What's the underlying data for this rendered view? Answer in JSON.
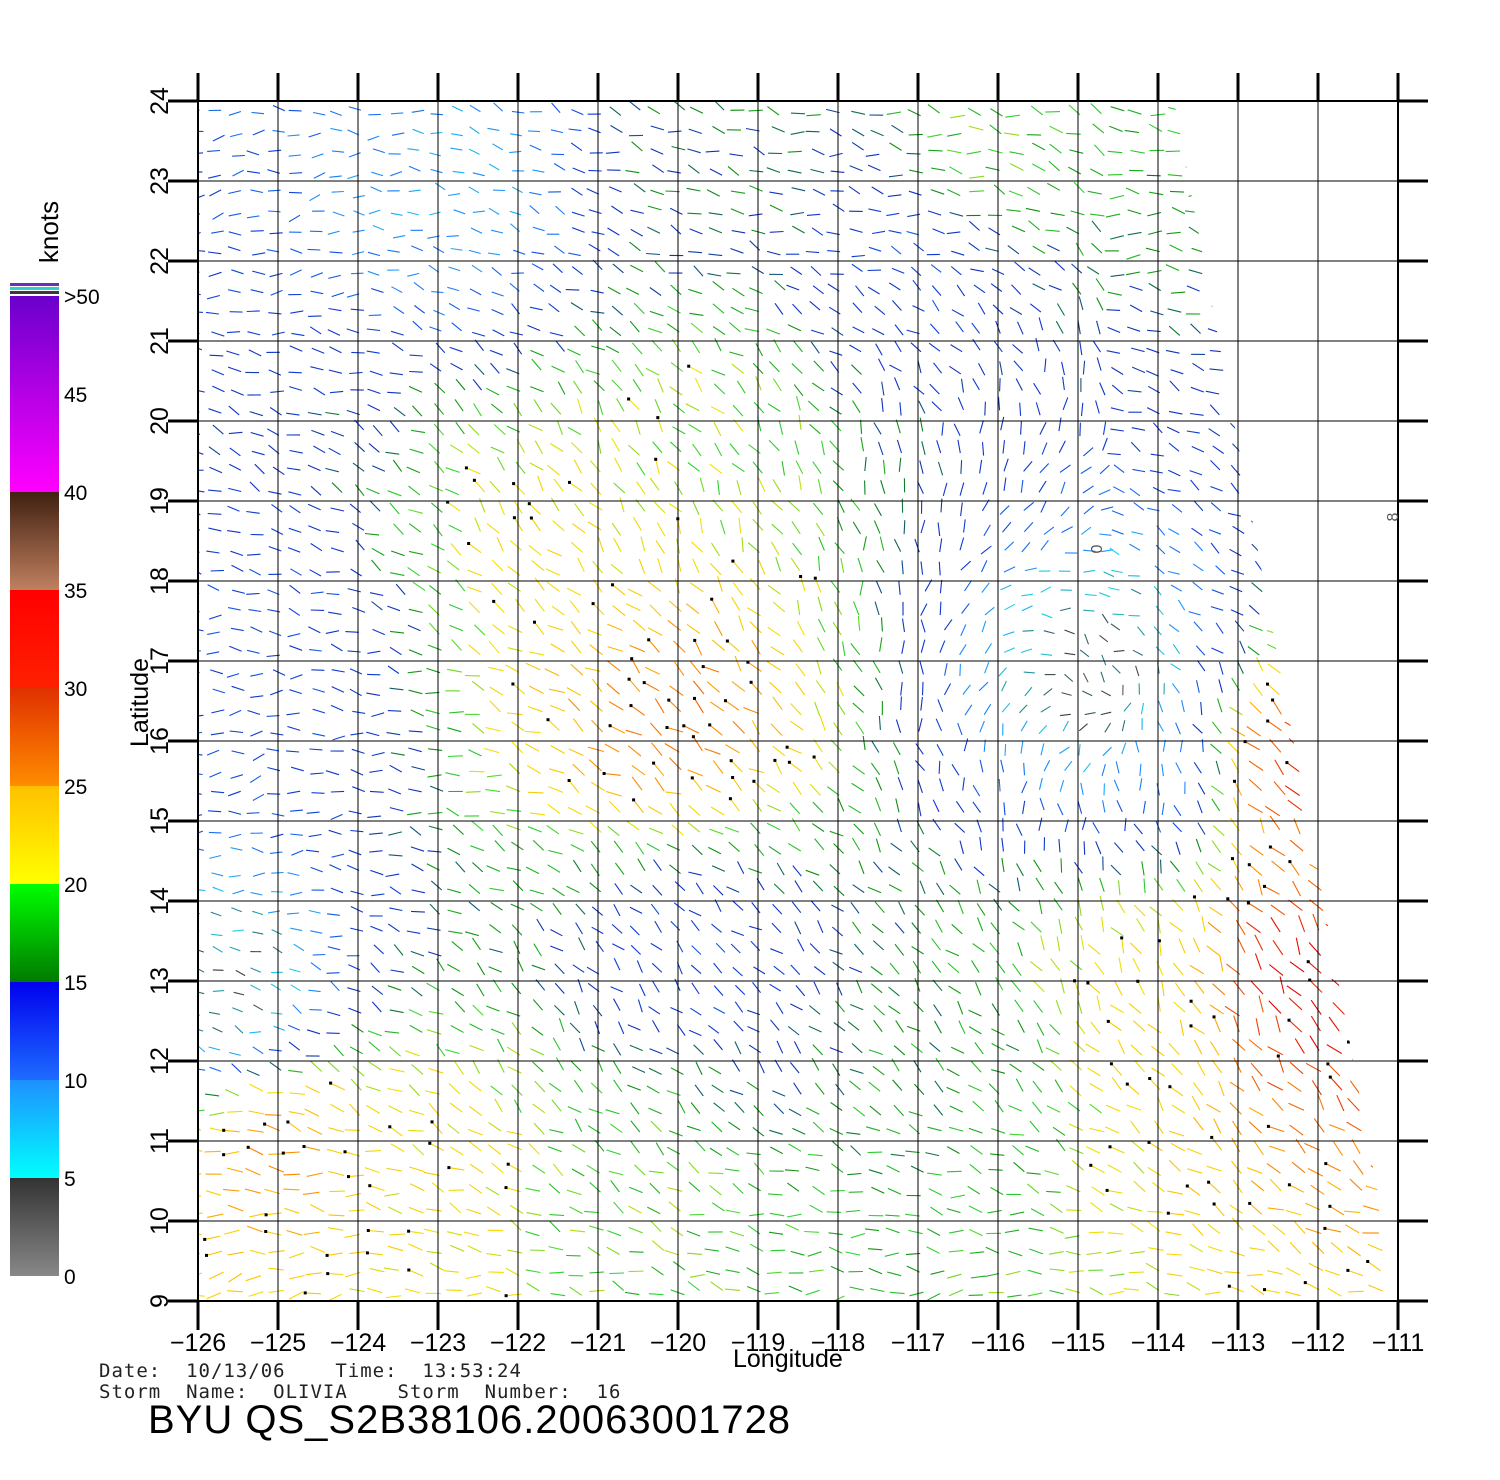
{
  "map": {
    "x_axis": {
      "label": "Longitude",
      "ticks": [
        "-126",
        "-125",
        "-124",
        "-123",
        "-122",
        "-121",
        "-120",
        "-119",
        "-118",
        "-117",
        "-116",
        "-115",
        "-114",
        "-113",
        "-112",
        "-111"
      ],
      "range": [
        -126,
        -111
      ]
    },
    "y_axis": {
      "label": "Latitude",
      "ticks": [
        "9",
        "10",
        "11",
        "12",
        "13",
        "14",
        "15",
        "16",
        "17",
        "18",
        "19",
        "20",
        "21",
        "22",
        "23",
        "24"
      ],
      "range": [
        9,
        24
      ]
    },
    "grid": true,
    "swath_polygon_deg": [
      [
        -126,
        24
      ],
      [
        -113.8,
        24
      ],
      [
        -111,
        9
      ],
      [
        -126,
        9
      ]
    ],
    "labels_in_plot": [
      {
        "text": "0",
        "lon": -114.7,
        "lat": 18.4
      },
      {
        "text": "8",
        "lon": -111.0,
        "lat": 18.8
      }
    ]
  },
  "colorbar": {
    "unit": "knots",
    "tick_labels": [
      "0",
      "5",
      "10",
      "15",
      "20",
      "25",
      "30",
      "35",
      "40",
      "45",
      ">50"
    ],
    "bands": [
      {
        "from": 0,
        "to": 5,
        "colors": [
          "#888888",
          "#333333"
        ]
      },
      {
        "from": 5,
        "to": 10,
        "colors": [
          "#00ffff",
          "#1e90ff"
        ]
      },
      {
        "from": 10,
        "to": 15,
        "colors": [
          "#1e6cff",
          "#0000ee"
        ]
      },
      {
        "from": 15,
        "to": 20,
        "colors": [
          "#007a00",
          "#00ff00"
        ]
      },
      {
        "from": 20,
        "to": 25,
        "colors": [
          "#ffff00",
          "#ffc000"
        ]
      },
      {
        "from": 25,
        "to": 30,
        "colors": [
          "#ff8c00",
          "#e03000"
        ]
      },
      {
        "from": 30,
        "to": 35,
        "colors": [
          "#ff2000",
          "#ff0000"
        ]
      },
      {
        "from": 35,
        "to": 40,
        "colors": [
          "#c08060",
          "#402010"
        ]
      },
      {
        "from": 40,
        "to": 50,
        "colors": [
          "#ff00ff",
          "#6a00cc"
        ]
      }
    ]
  },
  "speed_regions": [
    {
      "name": "low-nw",
      "lon": -125.6,
      "lat": 12.7,
      "speed": 3
    },
    {
      "name": "calm-center",
      "lon": -114.6,
      "lat": 16.7,
      "speed": 2
    },
    {
      "name": "orange-center",
      "lon": -120.1,
      "lat": 16.3,
      "speed": 27
    },
    {
      "name": "yellow-mid",
      "lon": -121.3,
      "lat": 18.3,
      "speed": 22
    },
    {
      "name": "yellow-n",
      "lon": -119.8,
      "lat": 19.8,
      "speed": 20
    },
    {
      "name": "orange-sw",
      "lon": -125.0,
      "lat": 11.0,
      "speed": 26
    },
    {
      "name": "yellow-sw2",
      "lon": -123.0,
      "lat": 10.7,
      "speed": 22
    },
    {
      "name": "yellow-s",
      "lon": -120.5,
      "lat": 10.5,
      "speed": 19
    },
    {
      "name": "red-east",
      "lon": -112.3,
      "lat": 13.0,
      "speed": 32
    },
    {
      "name": "red-east2",
      "lon": -112.5,
      "lat": 15.6,
      "speed": 31
    },
    {
      "name": "yellow-east",
      "lon": -114.0,
      "lat": 12.8,
      "speed": 22
    },
    {
      "name": "green-se",
      "lon": -116.5,
      "lat": 12.0,
      "speed": 17
    },
    {
      "name": "cyan-ne",
      "lon": -113.8,
      "lat": 15.6,
      "speed": 8
    },
    {
      "name": "cyan-nw",
      "lon": -122.5,
      "lat": 22.8,
      "speed": 8
    },
    {
      "name": "blue-west",
      "lon": -125.0,
      "lat": 17.0,
      "speed": 12
    },
    {
      "name": "blue-n",
      "lon": -117.0,
      "lat": 22.0,
      "speed": 12
    },
    {
      "name": "green-n",
      "lon": -119.5,
      "lat": 23.3,
      "speed": 16
    },
    {
      "name": "green-ne",
      "lon": -116.0,
      "lat": 23.4,
      "speed": 19
    },
    {
      "name": "blue-mid",
      "lon": -119.8,
      "lat": 13.2,
      "speed": 12
    }
  ],
  "footer": {
    "date_line": "Date:  10/13/06    Time:  13:53:24",
    "storm_line": "Storm  Name:  OLIVIA    Storm  Number:  16",
    "title": "BYU  QS_S2B38106.20063001728"
  }
}
